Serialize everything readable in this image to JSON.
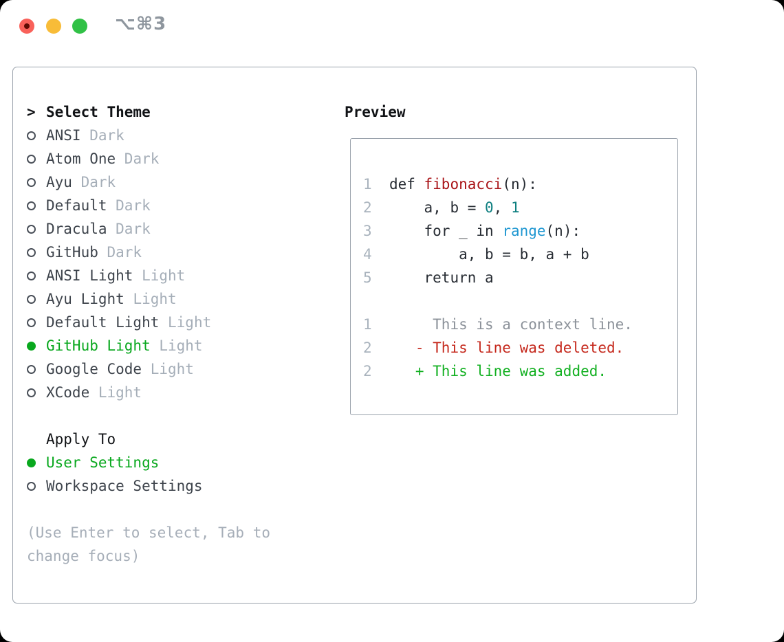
{
  "titlebar": {
    "title": "⌥⌘3"
  },
  "left": {
    "cursor": ">",
    "title": "Select Theme",
    "themes": [
      {
        "name": "ANSI",
        "tag": "Dark",
        "selected": false
      },
      {
        "name": "Atom One",
        "tag": "Dark",
        "selected": false
      },
      {
        "name": "Ayu",
        "tag": "Dark",
        "selected": false
      },
      {
        "name": "Default",
        "tag": "Dark",
        "selected": false
      },
      {
        "name": "Dracula",
        "tag": "Dark",
        "selected": false
      },
      {
        "name": "GitHub",
        "tag": "Dark",
        "selected": false
      },
      {
        "name": "ANSI Light",
        "tag": "Light",
        "selected": false
      },
      {
        "name": "Ayu Light",
        "tag": "Light",
        "selected": false
      },
      {
        "name": "Default Light",
        "tag": "Light",
        "selected": false
      },
      {
        "name": "GitHub Light",
        "tag": "Light",
        "selected": true
      },
      {
        "name": "Google Code",
        "tag": "Light",
        "selected": false
      },
      {
        "name": "XCode",
        "tag": "Light",
        "selected": false
      }
    ],
    "apply_title": "Apply To",
    "apply_options": [
      {
        "name": "User Settings",
        "selected": true
      },
      {
        "name": "Workspace Settings",
        "selected": false
      }
    ],
    "hint_line1": "(Use Enter to select, Tab to",
    "hint_line2": "change focus)"
  },
  "right": {
    "title": "Preview"
  },
  "preview": {
    "lines": [
      {
        "kind": "code-line",
        "num": "1",
        "segments": [
          {
            "t": "def ",
            "c": "text"
          },
          {
            "t": "fibonacci",
            "c": "func"
          },
          {
            "t": "(n):",
            "c": "text"
          }
        ]
      },
      {
        "kind": "code-line",
        "num": "2",
        "segments": [
          {
            "t": "    a, b = ",
            "c": "text"
          },
          {
            "t": "0",
            "c": "num"
          },
          {
            "t": ", ",
            "c": "text"
          },
          {
            "t": "1",
            "c": "num"
          }
        ]
      },
      {
        "kind": "code-line",
        "num": "3",
        "segments": [
          {
            "t": "    for _ in ",
            "c": "text"
          },
          {
            "t": "range",
            "c": "builtin"
          },
          {
            "t": "(n):",
            "c": "text"
          }
        ]
      },
      {
        "kind": "code-line",
        "num": "4",
        "segments": [
          {
            "t": "        a, b = b, a + b",
            "c": "text"
          }
        ]
      },
      {
        "kind": "code-line",
        "num": "5",
        "segments": [
          {
            "t": "    return a",
            "c": "text"
          }
        ]
      },
      {
        "kind": "blank-line",
        "num": "",
        "segments": []
      },
      {
        "kind": "diff-context-line",
        "num": "1",
        "segments": [
          {
            "t": "     This is a context line.",
            "c": "context"
          }
        ]
      },
      {
        "kind": "diff-deleted-line",
        "num": "2",
        "segments": [
          {
            "t": "   - This line was deleted.",
            "c": "deleted"
          }
        ]
      },
      {
        "kind": "diff-added-line",
        "num": "2",
        "segments": [
          {
            "t": "   + This line was added.",
            "c": "added"
          }
        ]
      }
    ]
  },
  "colors": {
    "border": "#99a1ab",
    "heading": "#101215",
    "item_text": "#3d434b",
    "tag_gray": "#a5aeb8",
    "selected_green": "#09a81e",
    "radio_ring": "#494f58",
    "hint_gray": "#a6aeb8",
    "line_num": "#a9b3bd",
    "code_text": "#272c33",
    "func_red": "#a91418",
    "number_teal": "#0e7f80",
    "builtin_blue": "#1f97d1",
    "context_gray": "#8b9199",
    "deleted_red": "#c5281c",
    "added_green": "#12b021",
    "titlebar_text": "#8e969e",
    "traffic_red": "#f9615a",
    "traffic_red_dot": "#5f0b03",
    "traffic_yellow": "#f8bc38",
    "traffic_green": "#31c146"
  }
}
